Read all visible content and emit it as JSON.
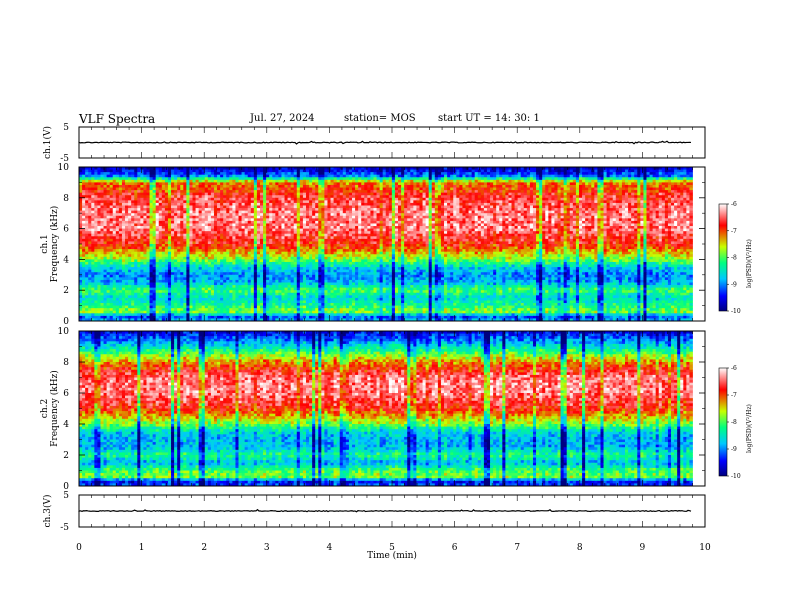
{
  "header": {
    "title": "VLF Spectra",
    "date": "Jul. 27, 2024",
    "station": "station= MOS",
    "start": "start  UT  =   14: 30: 1"
  },
  "chart_data": [
    {
      "type": "line",
      "name": "ch1-waveform",
      "ylabel": "ch.1(V)",
      "xlim": [
        0,
        10
      ],
      "ylim": [
        -5,
        5
      ],
      "yticks": [
        "5",
        "-5"
      ],
      "baseline": 0
    },
    {
      "type": "heatmap",
      "name": "ch1-spectrogram",
      "ylabel": "ch.1\nFrequency (kHz)",
      "xlim": [
        0,
        10
      ],
      "ylim": [
        0,
        10
      ],
      "yticks": [
        "0",
        "2",
        "4",
        "6",
        "8",
        "10"
      ],
      "data_x_end": 9.8,
      "colorbar": {
        "label": "log(PSD)(V²/Hz)",
        "range": [
          -10,
          -6
        ],
        "ticks": [
          "-6",
          "-7",
          "-8",
          "-9",
          "-10"
        ]
      },
      "intensity_profile": {
        "freq_khz": [
          0,
          0.3,
          0.6,
          1.0,
          1.5,
          2.0,
          2.5,
          3.0,
          3.5,
          4.0,
          5.0,
          6.0,
          7.0,
          8.0,
          9.0,
          9.4,
          10.0
        ],
        "level": [
          0.3,
          0.2,
          0.55,
          0.45,
          0.35,
          0.5,
          0.3,
          0.25,
          0.35,
          0.55,
          0.8,
          0.9,
          0.9,
          0.85,
          0.7,
          0.25,
          0.05
        ]
      }
    },
    {
      "type": "heatmap",
      "name": "ch2-spectrogram",
      "ylabel": "ch.2\nFrequency (kHz)",
      "xlim": [
        0,
        10
      ],
      "ylim": [
        0,
        10
      ],
      "yticks": [
        "0",
        "2",
        "4",
        "6",
        "8",
        "10"
      ],
      "data_x_end": 9.8,
      "colorbar": {
        "label": "log(PSD)(V²/Hz)",
        "range": [
          -10,
          -6
        ],
        "ticks": [
          "-6",
          "-7",
          "-8",
          "-9",
          "-10"
        ]
      },
      "intensity_profile": {
        "freq_khz": [
          0,
          0.3,
          0.6,
          1.0,
          1.5,
          2.0,
          2.5,
          3.0,
          3.5,
          4.0,
          5.0,
          6.0,
          7.0,
          8.0,
          8.6,
          9.2,
          10.0
        ],
        "level": [
          0.2,
          0.15,
          0.55,
          0.5,
          0.3,
          0.45,
          0.3,
          0.3,
          0.35,
          0.55,
          0.8,
          0.9,
          0.9,
          0.7,
          0.5,
          0.3,
          0.1
        ]
      }
    },
    {
      "type": "line",
      "name": "ch3-waveform",
      "ylabel": "ch.3(V)",
      "xlim": [
        0,
        10
      ],
      "ylim": [
        -5,
        5
      ],
      "yticks": [
        "5",
        "-5"
      ],
      "baseline": 0
    }
  ],
  "xaxis": {
    "label": "Time (min)",
    "ticks": [
      "0",
      "1",
      "2",
      "3",
      "4",
      "5",
      "6",
      "7",
      "8",
      "9",
      "10"
    ]
  },
  "colors": {
    "colormap": [
      "#000080",
      "#0000ff",
      "#00c8ff",
      "#00ff80",
      "#c8ff00",
      "#ff0000",
      "#ffffff"
    ]
  }
}
